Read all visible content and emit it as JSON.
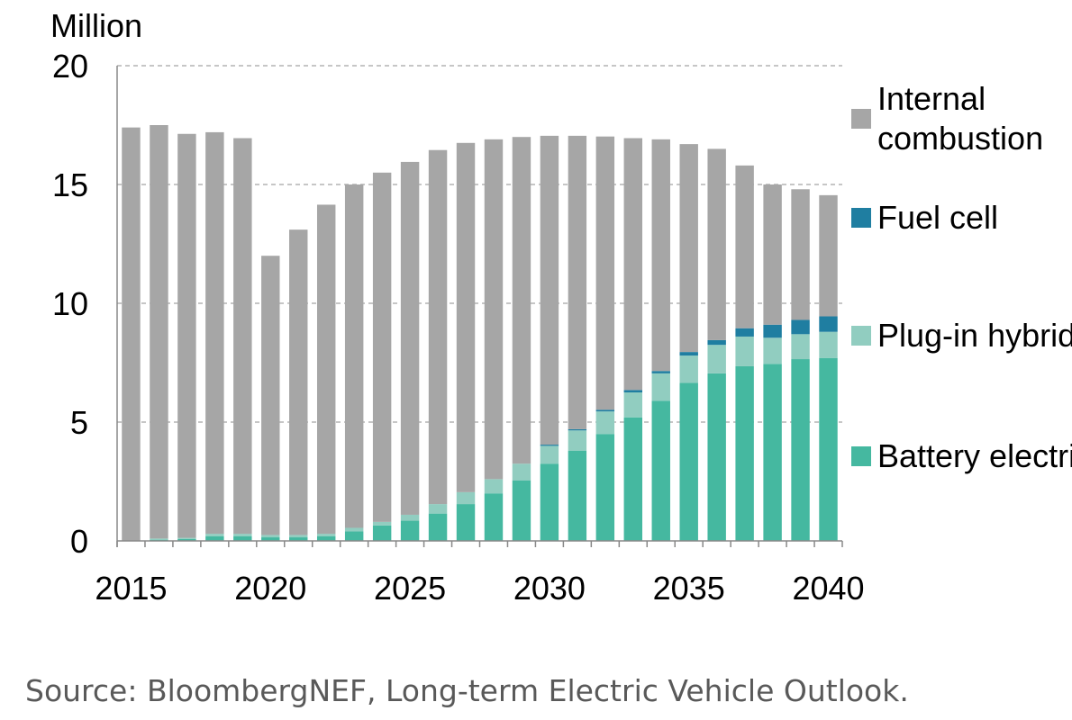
{
  "chart_data": {
    "type": "bar",
    "stacked": true,
    "ylabel": "Million",
    "ylim": [
      0,
      20
    ],
    "yticks": [
      0,
      5,
      10,
      15,
      20
    ],
    "xtick_labels": [
      "2015",
      "2020",
      "2025",
      "2030",
      "2035",
      "2040"
    ],
    "grid": "horizontal dashed",
    "legend_position": "right",
    "categories": [
      "2015",
      "2016",
      "2017",
      "2018",
      "2019",
      "2020",
      "2021",
      "2022",
      "2023",
      "2024",
      "2025",
      "2026",
      "2027",
      "2028",
      "2029",
      "2030",
      "2031",
      "2032",
      "2033",
      "2034",
      "2035",
      "2036",
      "2037",
      "2038",
      "2039",
      "2040"
    ],
    "series": [
      {
        "name": "Battery electric",
        "color": "#45b8a0",
        "values": [
          0.0,
          0.05,
          0.08,
          0.2,
          0.2,
          0.15,
          0.15,
          0.2,
          0.4,
          0.65,
          0.85,
          1.15,
          1.55,
          2.0,
          2.55,
          3.25,
          3.8,
          4.5,
          5.2,
          5.9,
          6.65,
          7.05,
          7.35,
          7.45,
          7.65,
          7.7
        ]
      },
      {
        "name": "Plug-in hybrid",
        "color": "#91cdc0",
        "values": [
          0.0,
          0.05,
          0.05,
          0.1,
          0.1,
          0.1,
          0.1,
          0.1,
          0.15,
          0.15,
          0.25,
          0.4,
          0.5,
          0.6,
          0.7,
          0.75,
          0.85,
          0.95,
          1.05,
          1.15,
          1.15,
          1.2,
          1.25,
          1.1,
          1.05,
          1.1
        ]
      },
      {
        "name": "Fuel cell",
        "color": "#1f7ea1",
        "values": [
          0,
          0,
          0,
          0,
          0,
          0,
          0,
          0,
          0,
          0,
          0,
          0,
          0,
          0,
          0,
          0.05,
          0.05,
          0.07,
          0.1,
          0.1,
          0.15,
          0.2,
          0.35,
          0.55,
          0.6,
          0.65
        ]
      },
      {
        "name": "Internal\ncombustion",
        "color": "#a6a6a6",
        "values": [
          17.4,
          17.4,
          17.0,
          16.9,
          16.65,
          11.75,
          12.85,
          13.85,
          14.45,
          14.7,
          14.85,
          14.9,
          14.7,
          14.3,
          13.75,
          13.0,
          12.35,
          11.5,
          10.6,
          9.75,
          8.75,
          8.05,
          6.85,
          5.9,
          5.5,
          5.1
        ]
      }
    ]
  },
  "source_text": "Source: BloombergNEF, Long-term Electric Vehicle Outlook."
}
